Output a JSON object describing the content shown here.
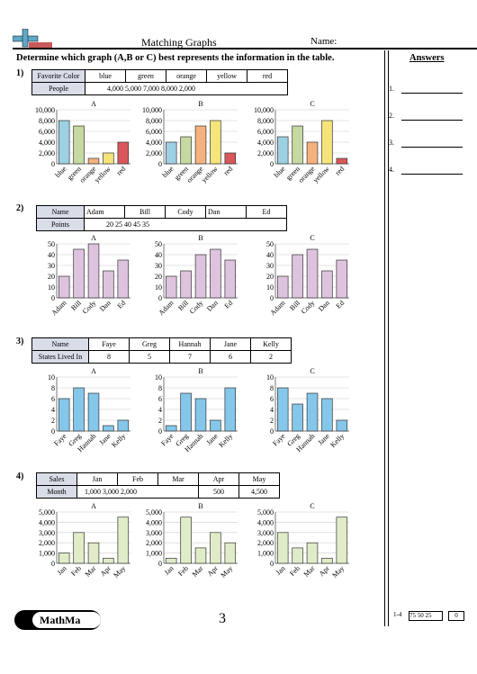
{
  "header": {
    "title": "Matching Graphs",
    "name_label": "Name:",
    "instructions": "Determine which graph (A,B or C) best represents the information in the table.",
    "answers_label": "Answers"
  },
  "answers": [
    "1.",
    "2.",
    "3.",
    "4."
  ],
  "questions": [
    {
      "num": "1)",
      "row1_label": "Favorite Color",
      "row1": [
        "blue",
        "green",
        "orange",
        "yellow",
        "red"
      ],
      "row2_label": "People",
      "row2": "4,000 5,000 7,000 8,000 2,000"
    },
    {
      "num": "2)",
      "row1_label": "Name",
      "row1": [
        "Adam",
        "Bill",
        "Cody",
        "Dan",
        "Ed"
      ],
      "row2_label": "Points",
      "row2": "20 25 40 45 35"
    },
    {
      "num": "3)",
      "row1_label": "Name",
      "row1": [
        "Faye",
        "Greg",
        "Hannah",
        "Jane",
        "Kelly"
      ],
      "row2_label": "States Lived In",
      "row2": [
        "8",
        "5",
        "7",
        "6",
        "2"
      ]
    },
    {
      "num": "4)",
      "row1_label": "Sales",
      "row1": [
        "Jan",
        "Feb",
        "Mar",
        "Apr",
        "May"
      ],
      "row2_label": "Month",
      "row2": [
        "1,000 3,000 2,000",
        "",
        "",
        "500",
        "4,500"
      ]
    }
  ],
  "chart_data": [
    {
      "type": "bar",
      "title": "A",
      "categories": [
        "blue",
        "green",
        "orange",
        "yellow",
        "red"
      ],
      "values": [
        8000,
        7000,
        1000,
        2000,
        4000
      ],
      "ylim": [
        0,
        10000
      ],
      "yticks": [
        "0",
        "2,000",
        "4,000",
        "6,000",
        "8,000",
        "10,000"
      ],
      "colors": [
        "#9dd0e3",
        "#c6d9a0",
        "#f6b27e",
        "#f5e47a",
        "#d9575a"
      ]
    },
    {
      "type": "bar",
      "title": "B",
      "categories": [
        "blue",
        "green",
        "orange",
        "yellow",
        "red"
      ],
      "values": [
        4000,
        5000,
        7000,
        8000,
        2000
      ],
      "ylim": [
        0,
        10000
      ],
      "yticks": [
        "0",
        "2,000",
        "4,000",
        "6,000",
        "8,000",
        "10,000"
      ],
      "colors": [
        "#9dd0e3",
        "#c6d9a0",
        "#f6b27e",
        "#f5e47a",
        "#d9575a"
      ]
    },
    {
      "type": "bar",
      "title": "C",
      "categories": [
        "blue",
        "green",
        "orange",
        "yellow",
        "red"
      ],
      "values": [
        5000,
        7000,
        4000,
        8000,
        1000
      ],
      "ylim": [
        0,
        10000
      ],
      "yticks": [
        "0",
        "2,000",
        "4,000",
        "6,000",
        "8,000",
        "10,000"
      ],
      "colors": [
        "#9dd0e3",
        "#c6d9a0",
        "#f6b27e",
        "#f5e47a",
        "#d9575a"
      ]
    },
    {
      "type": "bar",
      "title": "A",
      "categories": [
        "Adam",
        "Bill",
        "Cody",
        "Dan",
        "Ed"
      ],
      "values": [
        20,
        45,
        50,
        25,
        35
      ],
      "ylim": [
        0,
        50
      ],
      "yticks": [
        "0",
        "10",
        "20",
        "30",
        "40",
        "50"
      ],
      "colors": [
        "#dec3de"
      ]
    },
    {
      "type": "bar",
      "title": "B",
      "categories": [
        "Adam",
        "Bill",
        "Cody",
        "Dan",
        "Ed"
      ],
      "values": [
        20,
        25,
        40,
        45,
        35
      ],
      "ylim": [
        0,
        50
      ],
      "yticks": [
        "0",
        "10",
        "20",
        "30",
        "40",
        "50"
      ],
      "colors": [
        "#dec3de"
      ]
    },
    {
      "type": "bar",
      "title": "C",
      "categories": [
        "Adam",
        "Bill",
        "Cody",
        "Dan",
        "Ed"
      ],
      "values": [
        20,
        40,
        45,
        25,
        35
      ],
      "ylim": [
        0,
        50
      ],
      "yticks": [
        "0",
        "10",
        "20",
        "30",
        "40",
        "50"
      ],
      "colors": [
        "#dec3de"
      ]
    },
    {
      "type": "bar",
      "title": "A",
      "categories": [
        "Faye",
        "Greg",
        "Hannah",
        "Jane",
        "Kelly"
      ],
      "values": [
        6,
        8,
        7,
        1,
        2
      ],
      "ylim": [
        0,
        10
      ],
      "yticks": [
        "0",
        "2",
        "4",
        "6",
        "8",
        "10"
      ],
      "colors": [
        "#85c7ea"
      ]
    },
    {
      "type": "bar",
      "title": "B",
      "categories": [
        "Faye",
        "Greg",
        "Hannah",
        "Jane",
        "Kelly"
      ],
      "values": [
        1,
        7,
        6,
        2,
        8
      ],
      "ylim": [
        0,
        10
      ],
      "yticks": [
        "0",
        "2",
        "4",
        "6",
        "8",
        "10"
      ],
      "colors": [
        "#85c7ea"
      ]
    },
    {
      "type": "bar",
      "title": "C",
      "categories": [
        "Faye",
        "Greg",
        "Hannah",
        "Jane",
        "Kelly"
      ],
      "values": [
        8,
        5,
        7,
        6,
        2
      ],
      "ylim": [
        0,
        10
      ],
      "yticks": [
        "0",
        "2",
        "4",
        "6",
        "8",
        "10"
      ],
      "colors": [
        "#85c7ea"
      ]
    },
    {
      "type": "bar",
      "title": "A",
      "categories": [
        "Jan",
        "Feb",
        "Mar",
        "Apr",
        "May"
      ],
      "values": [
        1000,
        3000,
        2000,
        500,
        4500
      ],
      "ylim": [
        0,
        5000
      ],
      "yticks": [
        "0",
        "1,000",
        "2,000",
        "3,000",
        "4,000",
        "5,000"
      ],
      "colors": [
        "#e0ecc8"
      ]
    },
    {
      "type": "bar",
      "title": "B",
      "categories": [
        "Jan",
        "Feb",
        "Mar",
        "Apr",
        "May"
      ],
      "values": [
        500,
        4500,
        1500,
        3000,
        2000
      ],
      "ylim": [
        0,
        5000
      ],
      "yticks": [
        "0",
        "1,000",
        "2,000",
        "3,000",
        "4,000",
        "5,000"
      ],
      "colors": [
        "#e0ecc8"
      ]
    },
    {
      "type": "bar",
      "title": "C",
      "categories": [
        "Jan",
        "Feb",
        "Mar",
        "Apr",
        "May"
      ],
      "values": [
        3000,
        1500,
        2000,
        500,
        4500
      ],
      "ylim": [
        0,
        5000
      ],
      "yticks": [
        "0",
        "1,000",
        "2,000",
        "3,000",
        "4,000",
        "5,000"
      ],
      "colors": [
        "#e0ecc8"
      ]
    }
  ],
  "footer": {
    "logo": "MathMa",
    "page": "3",
    "range": "1-4",
    "scores": "75 50 25",
    "zero": "0"
  }
}
